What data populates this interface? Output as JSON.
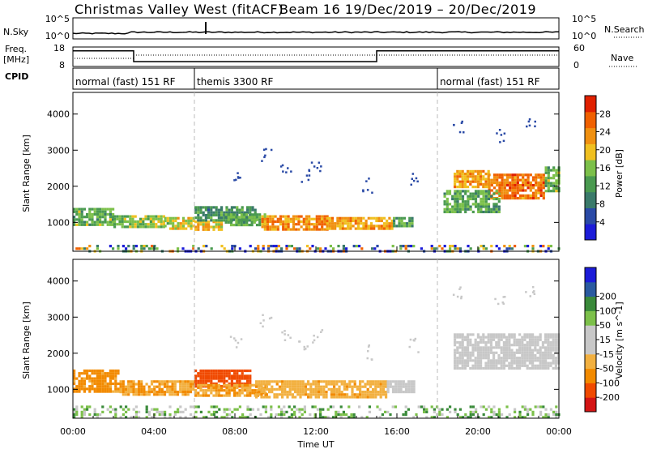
{
  "header": {
    "title_left": "Christmas Valley West (fitACF)",
    "title_right": "Beam 16  19/Dec/2019 – 20/Dec/2019"
  },
  "strips": {
    "nsky": {
      "label": "N.Sky",
      "yticks": [
        "10^5",
        "10^0"
      ],
      "right_label": "N.Search",
      "right_ticks": [
        "10^5",
        "10^0"
      ]
    },
    "freq": {
      "label_line1": "Freq.",
      "label_line2": "[MHz]",
      "yticks": [
        "18",
        "8"
      ],
      "right_label": "Nave",
      "right_ticks": [
        "60",
        "0"
      ],
      "steps": [
        {
          "start_hr": 0,
          "end_hr": 3,
          "freq_mhz": 16
        },
        {
          "start_hr": 3,
          "end_hr": 15,
          "freq_mhz": 10.5
        },
        {
          "start_hr": 15,
          "end_hr": 24,
          "freq_mhz": 16
        }
      ]
    },
    "cpid": {
      "label": "CPID",
      "segments": [
        {
          "text": "normal (fast) 151 RF",
          "start_hr": 0
        },
        {
          "text": "themis 3300 RF",
          "start_hr": 6
        },
        {
          "text": "normal (fast) 151 RF",
          "start_hr": 18
        }
      ]
    }
  },
  "colors": {
    "power_scale": [
      "#1c1cd8",
      "#2a4aa6",
      "#3a7a6a",
      "#4a9a50",
      "#7cc04a",
      "#f0c020",
      "#f09010",
      "#f06000",
      "#e02000"
    ],
    "velocity_scale": [
      "#d41414",
      "#f04a00",
      "#f28a00",
      "#f2b040",
      "#c8c8c8",
      "#c8c8c8",
      "#7cc04a",
      "#3a8a3a",
      "#2a5aa0",
      "#1c1cd8"
    ]
  },
  "chart_data": [
    {
      "type": "heatmap",
      "name": "Power",
      "ylabel": "Slant Range [km]",
      "ylim": [
        200,
        4600
      ],
      "xlim_hr": [
        0,
        24
      ],
      "yticks": [
        1000,
        2000,
        3000,
        4000
      ],
      "colorbar": {
        "label": "Power [dB]",
        "range": [
          0,
          32
        ],
        "ticks": [
          4,
          8,
          12,
          16,
          20,
          24,
          28
        ]
      },
      "regions": [
        {
          "t0": 0,
          "t1": 2.0,
          "r0": 950,
          "r1": 1400,
          "value": 14
        },
        {
          "t0": 2.0,
          "t1": 4.5,
          "r0": 850,
          "r1": 1200,
          "value": 16
        },
        {
          "t0": 4.5,
          "t1": 6.0,
          "r0": 800,
          "r1": 1150,
          "value": 18
        },
        {
          "t0": 6.0,
          "t1": 7.3,
          "r0": 800,
          "r1": 1050,
          "value": 20
        },
        {
          "t0": 6.0,
          "t1": 9.0,
          "r0": 1050,
          "r1": 1450,
          "value": 11
        },
        {
          "t0": 7.5,
          "t1": 9.5,
          "r0": 900,
          "r1": 1250,
          "value": 14
        },
        {
          "t0": 9.3,
          "t1": 12.5,
          "r0": 780,
          "r1": 1200,
          "value": 24
        },
        {
          "t0": 12.5,
          "t1": 15.8,
          "r0": 820,
          "r1": 1150,
          "value": 22
        },
        {
          "t0": 15.8,
          "t1": 16.8,
          "r0": 900,
          "r1": 1150,
          "value": 12
        },
        {
          "t0": 18.8,
          "t1": 20.5,
          "r0": 1950,
          "r1": 2450,
          "value": 22
        },
        {
          "t0": 20.5,
          "t1": 23.3,
          "r0": 1700,
          "r1": 2350,
          "value": 25
        },
        {
          "t0": 23.3,
          "t1": 24,
          "r0": 1900,
          "r1": 2550,
          "value": 14
        },
        {
          "t0": 18.3,
          "t1": 21.0,
          "r0": 1300,
          "r1": 1900,
          "value": 13
        },
        {
          "t0": 0,
          "t1": 24,
          "r0": 200,
          "r1": 380,
          "value": 12
        }
      ]
    },
    {
      "type": "heatmap",
      "name": "Velocity",
      "ylabel": "Slant Range [km]",
      "xlabel": "Time UT",
      "ylim": [
        200,
        4600
      ],
      "xlim_hr": [
        0,
        24
      ],
      "yticks": [
        1000,
        2000,
        3000,
        4000
      ],
      "xticks": [
        "00:00",
        "04:00",
        "08:00",
        "12:00",
        "16:00",
        "20:00",
        "00:00"
      ],
      "colorbar": {
        "label": "Velocity [m s^-1]",
        "tick_labels": [
          "-200",
          "-100",
          "-50",
          "-15",
          "15",
          "50",
          "100",
          "200"
        ]
      },
      "regions": [
        {
          "t0": 0,
          "t1": 2.3,
          "r0": 950,
          "r1": 1550,
          "value": -60
        },
        {
          "t0": 2.3,
          "t1": 6.0,
          "r0": 850,
          "r1": 1250,
          "value": -50
        },
        {
          "t0": 6.0,
          "t1": 8.8,
          "r0": 1100,
          "r1": 1550,
          "value": -150
        },
        {
          "t0": 6.0,
          "t1": 9.5,
          "r0": 850,
          "r1": 1150,
          "value": -50
        },
        {
          "t0": 9.0,
          "t1": 15.5,
          "r0": 780,
          "r1": 1250,
          "value": -40
        },
        {
          "t0": 15.5,
          "t1": 16.8,
          "r0": 950,
          "r1": 1250,
          "value": 0
        },
        {
          "t0": 18.8,
          "t1": 24,
          "r0": 1600,
          "r1": 2550,
          "value": 0
        },
        {
          "t0": 0,
          "t1": 24,
          "r0": 200,
          "r1": 550,
          "value": 30
        }
      ]
    }
  ]
}
